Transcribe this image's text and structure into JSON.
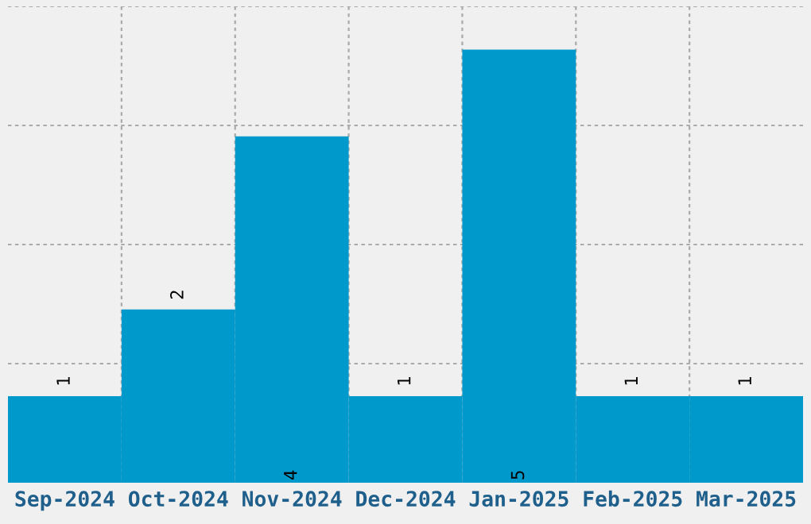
{
  "chart_data": {
    "type": "bar",
    "categories": [
      "Sep-2024",
      "Oct-2024",
      "Nov-2024",
      "Dec-2024",
      "Jan-2025",
      "Feb-2025",
      "Mar-2025"
    ],
    "values": [
      1,
      2,
      4,
      1,
      5,
      1,
      1
    ],
    "color": "#0099cc",
    "ylim": [
      0,
      5.5
    ],
    "yticks": [
      {
        "value": 1.375,
        "label": null
      },
      {
        "value": 2.75,
        "label": null
      },
      {
        "value": 4.125,
        "label": null
      },
      {
        "value": 5.5,
        "label": null
      }
    ],
    "tick_labels": "x",
    "grid": true,
    "data_labels": true
  }
}
